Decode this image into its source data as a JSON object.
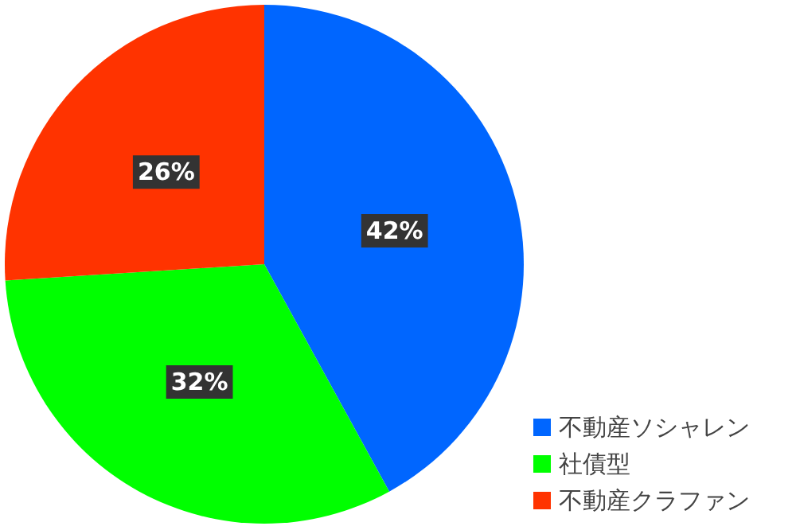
{
  "chart_data": {
    "type": "pie",
    "categories": [
      "不動産ソシャレン",
      "社債型",
      "不動産クラファン"
    ],
    "values": [
      42,
      32,
      26
    ],
    "colors": [
      "#0066ff",
      "#00ff00",
      "#ff3300"
    ],
    "value_labels": [
      "42%",
      "32%",
      "26%"
    ],
    "legend": "bottom right"
  }
}
